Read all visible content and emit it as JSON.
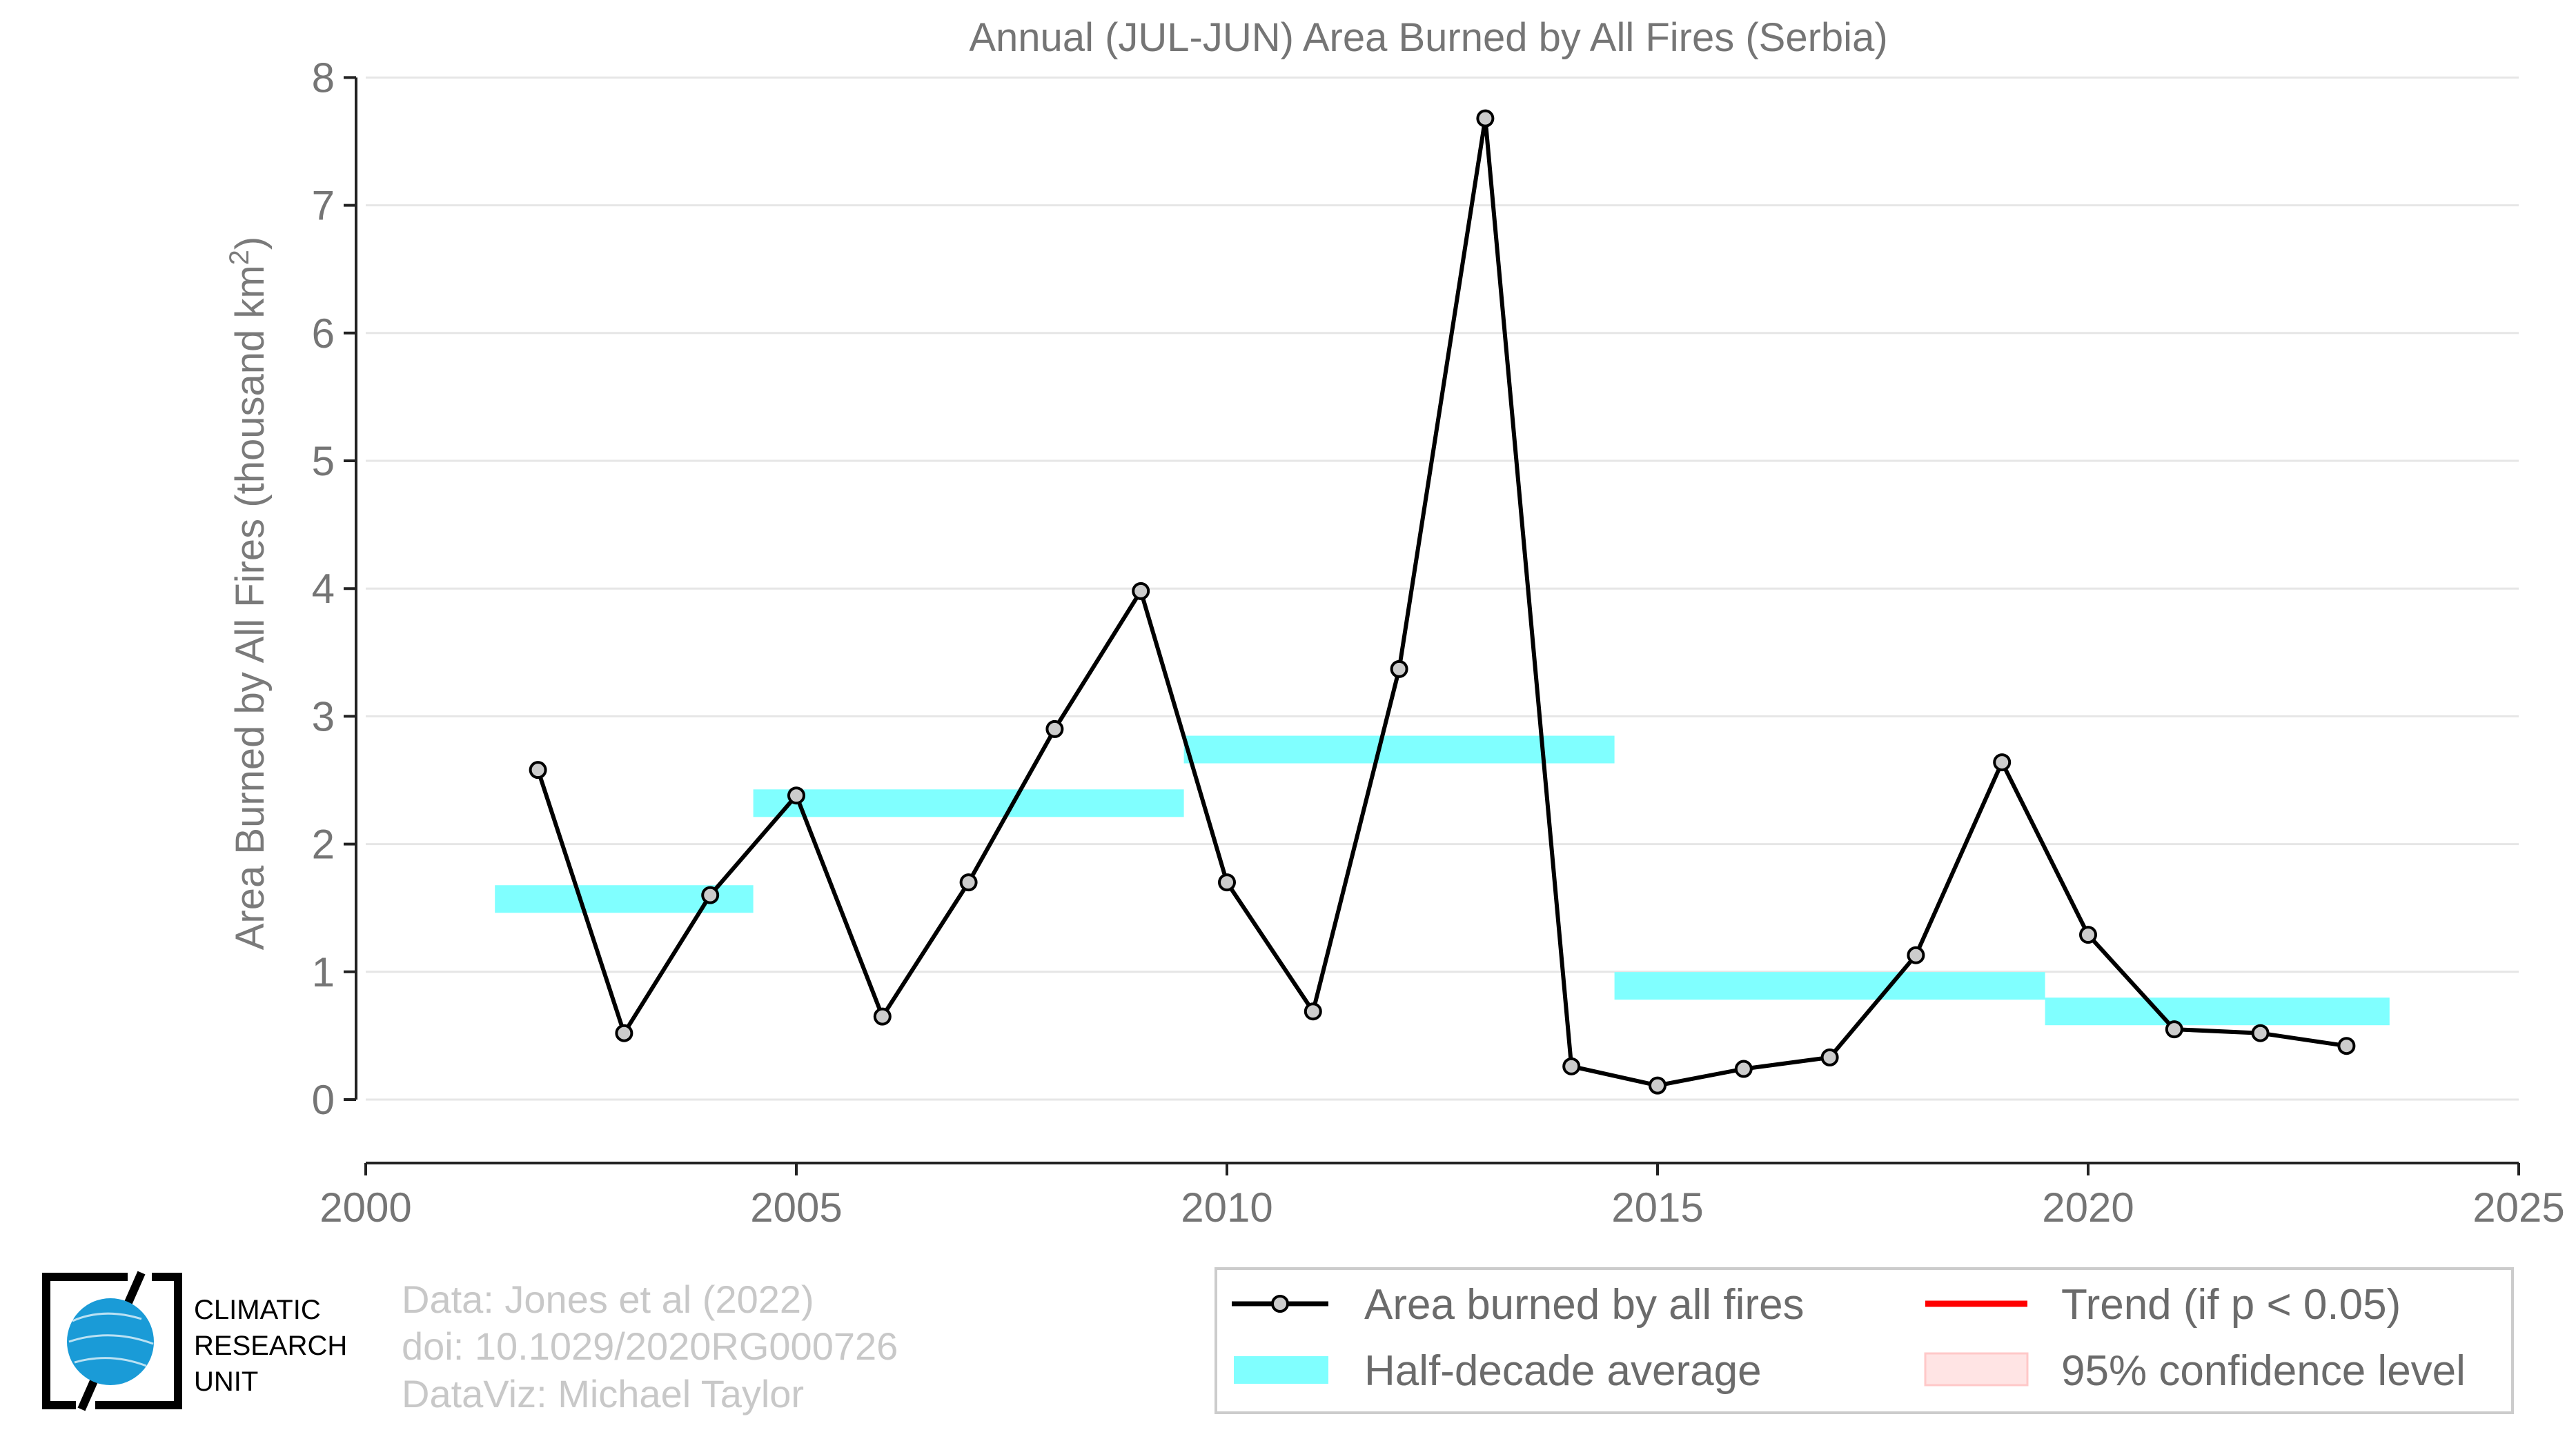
{
  "chart_data": {
    "type": "line",
    "title": "Annual (JUL-JUN) Area Burned by All Fires (Serbia)",
    "ylabel": "Area Burned by All Fires (thousand km",
    "ylabel_sup": "2",
    "ylabel_close": ")",
    "xlabel": "",
    "xlim": [
      2000,
      2025
    ],
    "ylim": [
      -0.5,
      8
    ],
    "grid": true,
    "x_ticks": [
      "2000",
      "2005",
      "2010",
      "2015",
      "2020",
      "2025"
    ],
    "y_ticks": [
      "0",
      "1",
      "2",
      "3",
      "4",
      "5",
      "6",
      "7",
      "8"
    ],
    "legend_placement": "bottom-right, outside plot",
    "series": [
      {
        "name": "Area burned by all fires",
        "color": "#000000",
        "marker_fill": "#cccccc",
        "x": [
          2002,
          2003,
          2004,
          2005,
          2006,
          2007,
          2008,
          2009,
          2010,
          2011,
          2012,
          2013,
          2014,
          2015,
          2016,
          2017,
          2018,
          2019,
          2020,
          2021,
          2022,
          2023
        ],
        "y": [
          2.58,
          0.52,
          1.6,
          2.38,
          0.65,
          1.7,
          2.9,
          3.98,
          1.7,
          0.69,
          3.37,
          7.68,
          0.26,
          0.11,
          0.24,
          0.33,
          1.13,
          2.64,
          1.29,
          0.55,
          0.52,
          0.42
        ]
      },
      {
        "name": "Half-decade average",
        "color": "#80ffff",
        "segments": [
          {
            "x0": 2001.5,
            "x1": 2004.5,
            "y": 1.57
          },
          {
            "x0": 2004.5,
            "x1": 2009.5,
            "y": 2.32
          },
          {
            "x0": 2009.5,
            "x1": 2014.5,
            "y": 2.74
          },
          {
            "x0": 2014.5,
            "x1": 2019.5,
            "y": 0.89
          },
          {
            "x0": 2019.5,
            "x1": 2023.5,
            "y": 0.69
          }
        ]
      }
    ],
    "legend": [
      {
        "label": "Area burned by all fires",
        "kind": "line-marker",
        "color": "#000000"
      },
      {
        "label": "Trend (if p < 0.05)",
        "kind": "line",
        "color": "#ff0000"
      },
      {
        "label": "Half-decade average",
        "kind": "band",
        "color": "#80ffff"
      },
      {
        "label": "95% confidence level",
        "kind": "box",
        "color": "#ffd6d6"
      }
    ]
  },
  "credits": {
    "line1": "Data: Jones et al (2022)",
    "line2": "doi: 10.1029/2020RG000726",
    "line3": "DataViz: Michael Taylor"
  },
  "logo": {
    "line1": "CLIMATIC",
    "line2": "RESEARCH",
    "line3": "UNIT"
  }
}
